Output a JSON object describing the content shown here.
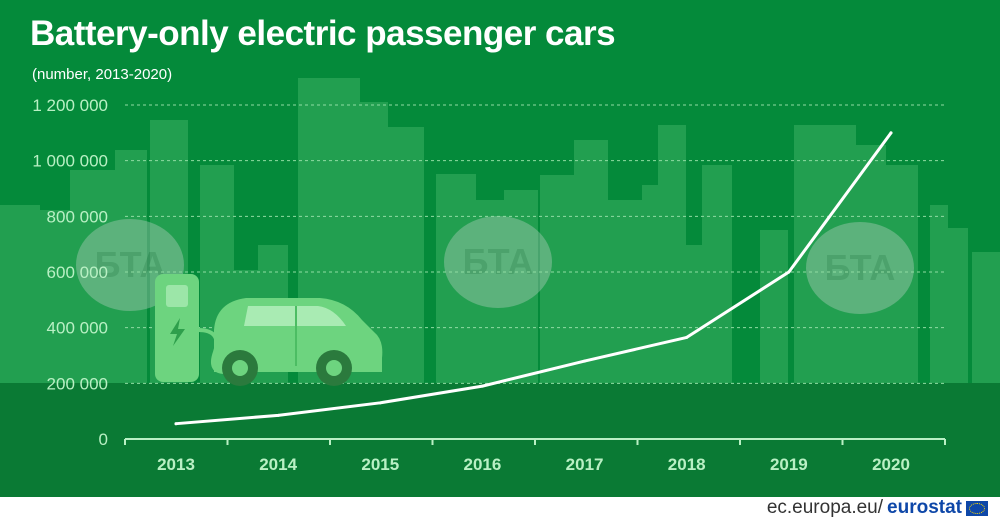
{
  "header": {
    "title": "Battery-only electric passenger cars",
    "subtitle": "(number, 2013-2020)"
  },
  "footer": {
    "site": "ec.europa.eu/",
    "brand": "eurostat"
  },
  "watermark": {
    "text": "БТА"
  },
  "colors": {
    "background": "#048a3a",
    "background_lower": "#0a7a34",
    "building": "#2fa85a",
    "line": "#ffffff",
    "axis_text": "#b9f0c4",
    "car": "#6dd47f",
    "grid": "#8fdca2"
  },
  "chart_data": {
    "type": "line",
    "title": "Battery-only electric passenger cars",
    "subtitle": "(number, 2013-2020)",
    "xlabel": "",
    "ylabel": "",
    "x": [
      "2013",
      "2014",
      "2015",
      "2016",
      "2017",
      "2018",
      "2019",
      "2020"
    ],
    "series": [
      {
        "values": [
          55000,
          85000,
          130000,
          190000,
          280000,
          365000,
          600000,
          1100000
        ]
      }
    ],
    "ylim": [
      0,
      1200000
    ],
    "yticks": [
      0,
      200000,
      400000,
      600000,
      800000,
      1000000,
      1200000
    ],
    "ytick_labels": [
      "0",
      "200 000",
      "400 000",
      "600 000",
      "800 000",
      "1 000 000",
      "1 200 000"
    ],
    "grid": true,
    "legend": "none"
  }
}
